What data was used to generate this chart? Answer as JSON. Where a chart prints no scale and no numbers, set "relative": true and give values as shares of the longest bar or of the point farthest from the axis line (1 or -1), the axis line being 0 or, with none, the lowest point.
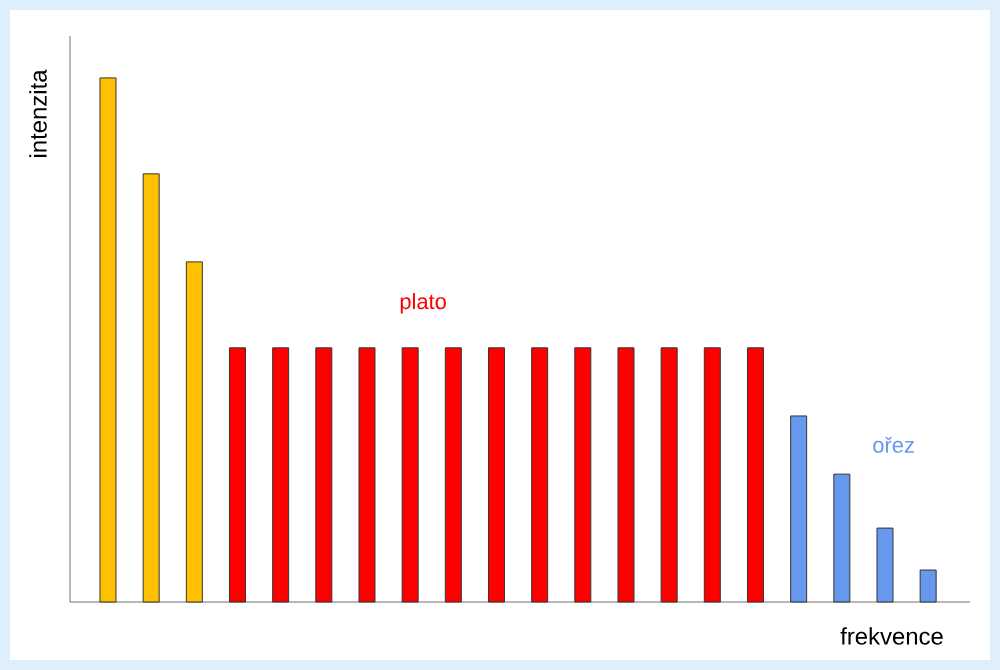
{
  "chart_data": {
    "type": "bar",
    "relative": true,
    "xlabel": "frekvence",
    "ylabel": "intenzita",
    "annotations": [
      "plato",
      "ořez"
    ],
    "categories": [
      null,
      null,
      null,
      null,
      null,
      null,
      null,
      null,
      null,
      null,
      null,
      null,
      null,
      null,
      null,
      null,
      null,
      null,
      null,
      null
    ],
    "values": [
      1,
      0.817,
      0.649,
      0.485,
      0.485,
      0.485,
      0.485,
      0.485,
      0.485,
      0.485,
      0.485,
      0.485,
      0.485,
      0.485,
      0.485,
      0.485,
      0.355,
      0.244,
      0.141,
      0.061
    ],
    "colors": [
      "#ffc000",
      "#ffc000",
      "#ffc000",
      "#ff0000",
      "#ff0000",
      "#ff0000",
      "#ff0000",
      "#ff0000",
      "#ff0000",
      "#ff0000",
      "#ff0000",
      "#ff0000",
      "#ff0000",
      "#ff0000",
      "#ff0000",
      "#ff0000",
      "#6699ee",
      "#6699ee",
      "#6699ee",
      "#6699ee"
    ]
  }
}
